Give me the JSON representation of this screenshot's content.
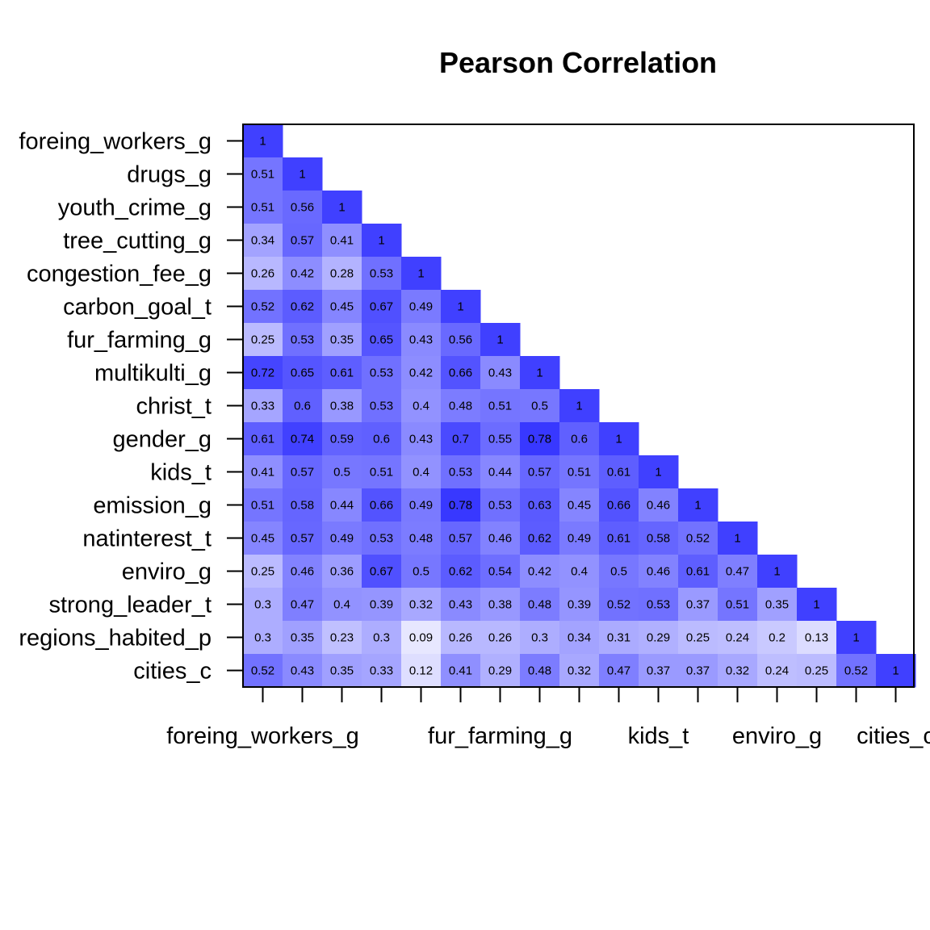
{
  "chart_data": {
    "type": "heatmap",
    "title": "Pearson Correlation",
    "variables": [
      "foreing_workers_g",
      "drugs_g",
      "youth_crime_g",
      "tree_cutting_g",
      "congestion_fee_g",
      "carbon_goal_t",
      "fur_farming_g",
      "multikulti_g",
      "christ_t",
      "gender_g",
      "kids_t",
      "emission_g",
      "natinterest_t",
      "enviro_g",
      "strong_leader_t",
      "regions_habited_p",
      "cities_c"
    ],
    "x_tick_labels": [
      "foreing_workers_g",
      "fur_farming_g",
      "kids_t",
      "enviro_g",
      "cities_c"
    ],
    "x_tick_label_indices": [
      0,
      6,
      10,
      13,
      16
    ],
    "matrix_lower_triangle": [
      [
        1
      ],
      [
        0.51,
        1
      ],
      [
        0.51,
        0.56,
        1
      ],
      [
        0.34,
        0.57,
        0.41,
        1
      ],
      [
        0.26,
        0.42,
        0.28,
        0.53,
        1
      ],
      [
        0.52,
        0.62,
        0.45,
        0.67,
        0.49,
        1
      ],
      [
        0.25,
        0.53,
        0.35,
        0.65,
        0.43,
        0.56,
        1
      ],
      [
        0.72,
        0.65,
        0.61,
        0.53,
        0.42,
        0.66,
        0.43,
        1
      ],
      [
        0.33,
        0.6,
        0.38,
        0.53,
        0.4,
        0.48,
        0.51,
        0.5,
        1
      ],
      [
        0.61,
        0.74,
        0.59,
        0.6,
        0.43,
        0.7,
        0.55,
        0.78,
        0.6,
        1
      ],
      [
        0.41,
        0.57,
        0.5,
        0.51,
        0.4,
        0.53,
        0.44,
        0.57,
        0.51,
        0.61,
        1
      ],
      [
        0.51,
        0.58,
        0.44,
        0.66,
        0.49,
        0.78,
        0.53,
        0.63,
        0.45,
        0.66,
        0.46,
        1
      ],
      [
        0.45,
        0.57,
        0.49,
        0.53,
        0.48,
        0.57,
        0.46,
        0.62,
        0.49,
        0.61,
        0.58,
        0.52,
        1
      ],
      [
        0.25,
        0.46,
        0.36,
        0.67,
        0.5,
        0.62,
        0.54,
        0.42,
        0.4,
        0.5,
        0.46,
        0.61,
        0.47,
        1
      ],
      [
        0.3,
        0.47,
        0.4,
        0.39,
        0.32,
        0.43,
        0.38,
        0.48,
        0.39,
        0.52,
        0.53,
        0.37,
        0.51,
        0.35,
        1
      ],
      [
        0.3,
        0.35,
        0.23,
        0.3,
        0.09,
        0.26,
        0.26,
        0.3,
        0.34,
        0.31,
        0.29,
        0.25,
        0.24,
        0.2,
        0.13,
        1
      ],
      [
        0.52,
        0.43,
        0.35,
        0.33,
        0.12,
        0.41,
        0.29,
        0.48,
        0.32,
        0.47,
        0.37,
        0.37,
        0.32,
        0.24,
        0.25,
        0.52,
        1
      ]
    ],
    "colors": {
      "low": "#ffffff",
      "mid": "#7777ff",
      "high": "#3333ff",
      "diagonal": "#4040ff"
    }
  }
}
